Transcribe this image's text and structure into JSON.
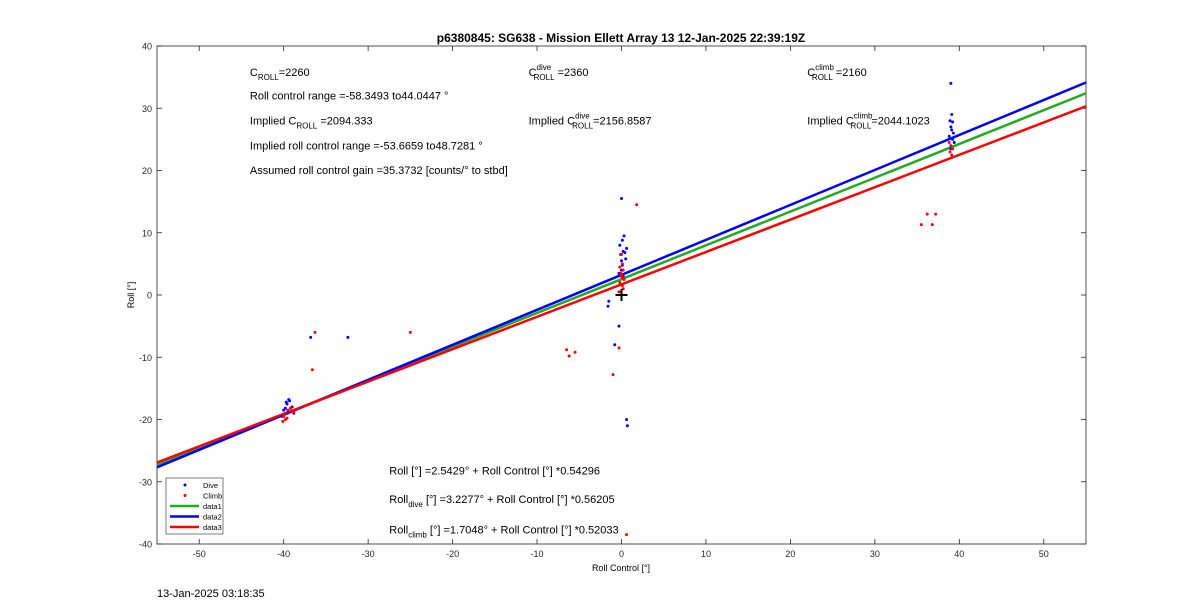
{
  "chart_data": {
    "type": "scatter",
    "title": "p6380845: SG638 - Mission Ellett Array 13 12-Jan-2025 22:39:19Z",
    "xlabel": "Roll Control [°]",
    "ylabel": "Roll [°]",
    "xlim": [
      -55,
      55
    ],
    "ylim": [
      -40,
      40
    ],
    "xticks": [
      -50,
      -40,
      -30,
      -20,
      -10,
      0,
      10,
      20,
      30,
      40,
      50
    ],
    "yticks": [
      -40,
      -30,
      -20,
      -10,
      0,
      10,
      20,
      30,
      40
    ],
    "grid": false,
    "legend_position": "bottom-left",
    "colors": {
      "dive": "#0000ff",
      "climb": "#ff0000",
      "data1": "#22aa22",
      "data2": "#0000ff",
      "data3": "#ff0000"
    },
    "series": [
      {
        "name": "Dive",
        "kind": "points",
        "marker": "dot",
        "x": [
          -40,
          -39.8,
          -39.6,
          -39.5,
          -39.3,
          -39,
          -38.8,
          -40.2,
          -39.7,
          -39.4,
          -36.8,
          -32.4,
          0,
          0.1,
          -0.2,
          0.3,
          0.2,
          -0.1,
          0,
          0.1,
          0.4,
          0.5,
          0,
          -0.3,
          0.2,
          0.6,
          -1.5,
          -1.6,
          -0.8,
          -0.3,
          0.6,
          0.7,
          39,
          39.1,
          38.9,
          39.2,
          39,
          39.1,
          39.3,
          38.8,
          39.2,
          39.4,
          39
        ],
        "y": [
          -18.5,
          -18.2,
          -17.5,
          -18.8,
          -17,
          -18,
          -19,
          -19.5,
          -17.2,
          -16.8,
          -6.8,
          -6.8,
          15.5,
          8.8,
          8,
          9.5,
          7,
          6.5,
          5.5,
          4.8,
          6.8,
          5.8,
          4,
          3.5,
          3,
          7.5,
          -1,
          -1.8,
          -8,
          -5,
          -20,
          -21,
          34,
          29,
          28,
          27.8,
          27,
          26.5,
          26,
          25.5,
          25,
          24.5,
          23.5
        ]
      },
      {
        "name": "Climb",
        "kind": "points",
        "marker": "dot",
        "x": [
          -40,
          -39.8,
          -39.5,
          -39.2,
          -39.8,
          -40.1,
          -39.6,
          -38.8,
          -36.6,
          -36.3,
          -25,
          0,
          0.1,
          -0.2,
          0.2,
          -0.1,
          0,
          0.3,
          -0.2,
          0.1,
          0.2,
          -0.3,
          0.1,
          0,
          1.8,
          -5.5,
          -6.5,
          -6.2,
          -0.3,
          -1,
          0.6,
          38.8,
          39,
          39.2,
          38.9,
          39.1,
          35.5,
          36.2,
          36.8,
          37.2
        ],
        "y": [
          -19.5,
          -19,
          -18.5,
          -18.2,
          -20,
          -20.3,
          -19.8,
          -18.8,
          -12,
          -6,
          -6,
          6.5,
          5,
          4.5,
          4,
          3.5,
          3,
          2.5,
          2,
          1.5,
          1,
          0.5,
          2.8,
          3.2,
          14.5,
          -9.2,
          -8.8,
          -9.8,
          -8.5,
          -12.8,
          -38.5,
          24.5,
          24,
          23.5,
          23,
          22.5,
          11.3,
          13,
          11.3,
          13
        ]
      },
      {
        "name": "data1",
        "kind": "line",
        "x": [
          -55,
          55
        ],
        "y": [
          -27.32,
          32.41
        ]
      },
      {
        "name": "data2",
        "kind": "line",
        "x": [
          -55,
          55
        ],
        "y": [
          -27.68,
          34.14
        ]
      },
      {
        "name": "data3",
        "kind": "line",
        "x": [
          -55,
          55
        ],
        "y": [
          -26.91,
          30.32
        ]
      }
    ],
    "mean_marker": {
      "x": 0,
      "y": 0,
      "marker": "+",
      "color": "#000000"
    },
    "annotations": [
      {
        "text": "C",
        "sub": "ROLL",
        "rest": "=2260",
        "x": -44,
        "y": 35.2
      },
      {
        "text": "Roll control range =-58.3493 to44.0447 °",
        "x": -44,
        "y": 31.4
      },
      {
        "text": "Implied C",
        "sub": "ROLL",
        "rest": " =2094.333",
        "x": -44,
        "y": 27.4
      },
      {
        "text": "Implied roll control range =-53.6659 to48.7281 °",
        "x": -44,
        "y": 23.4
      },
      {
        "text": "Assumed roll control gain =35.3732 [counts/° to stbd]",
        "x": -44,
        "y": 19.4
      },
      {
        "text": "C",
        "sub": "ROLL",
        "sup": "dive",
        "rest": " =2360",
        "x": -11,
        "y": 35.2
      },
      {
        "text": "Implied C",
        "sub": "ROLL",
        "sup": "dive",
        "rest": "=2156.8587",
        "x": -11,
        "y": 27.4
      },
      {
        "text": "C",
        "sub": "ROLL",
        "sup": "climb",
        "rest": " =2160",
        "x": 22,
        "y": 35.2
      },
      {
        "text": "Implied C",
        "sub": "ROLL",
        "sup": "climb",
        "rest": "=2044.1023",
        "x": 22,
        "y": 27.4
      },
      {
        "text": "Roll [°] =2.5429° + Roll Control [°] *0.54296",
        "x": -27.5,
        "y": -28.8
      },
      {
        "text": "Roll",
        "sub": "dive",
        "rest": " [°] =3.2277° + Roll Control [°] *0.56205",
        "x": -27.5,
        "y": -33.4
      },
      {
        "text": "Roll",
        "sub": "climb",
        "rest": " [°] =1.7048° + Roll Control [°] *0.52033",
        "x": -27.5,
        "y": -38.3
      }
    ]
  },
  "footer": {
    "timestamp": "13-Jan-2025 03:18:35"
  }
}
